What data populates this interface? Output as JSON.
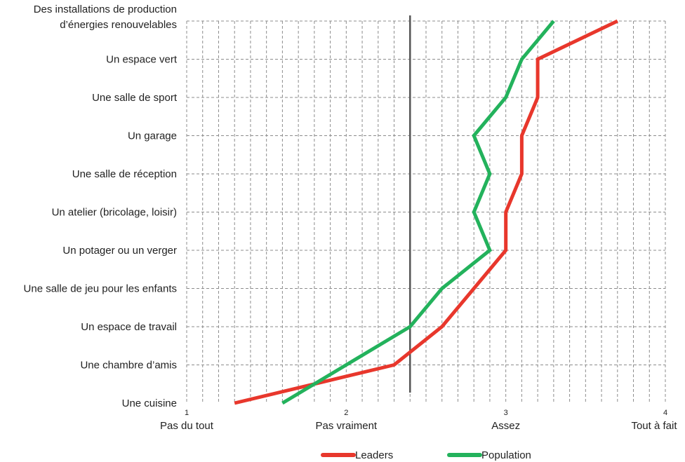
{
  "chart_data": {
    "type": "line",
    "orientation": "horizontal",
    "title": "",
    "xlabel": "",
    "ylabel": "",
    "xlim": [
      1,
      4
    ],
    "x_ticks": [
      {
        "value": 1,
        "number": "1",
        "label": "Pas du tout"
      },
      {
        "value": 2,
        "number": "2",
        "label": "Pas vraiment"
      },
      {
        "value": 3,
        "number": "3",
        "label": "Assez"
      },
      {
        "value": 4,
        "number": "4",
        "label": "Tout à fait"
      }
    ],
    "x_minor_step": 0.1,
    "reference_line": 2.4,
    "categories": [
      [
        "Des installations de production",
        "d’énergies renouvelables"
      ],
      [
        "Un espace vert"
      ],
      [
        "Une salle de sport"
      ],
      [
        "Un garage"
      ],
      [
        "Une salle de réception"
      ],
      [
        "Un atelier (bricolage, loisir)"
      ],
      [
        "Un potager ou un verger"
      ],
      [
        "Une salle de jeu pour les enfants"
      ],
      [
        "Un espace de travail"
      ],
      [
        "Une chambre d’amis"
      ],
      [
        "Une cuisine"
      ]
    ],
    "series": [
      {
        "name": "Leaders",
        "color": "#e8372c",
        "values": [
          3.7,
          3.2,
          3.2,
          3.1,
          3.1,
          3.0,
          3.0,
          2.8,
          2.6,
          2.3,
          1.3
        ]
      },
      {
        "name": "Population",
        "color": "#23b25c",
        "values": [
          3.3,
          3.1,
          3.0,
          2.8,
          2.9,
          2.8,
          2.9,
          2.6,
          2.4,
          2.0,
          1.6
        ]
      }
    ],
    "grid": true,
    "legend_position": "bottom"
  }
}
